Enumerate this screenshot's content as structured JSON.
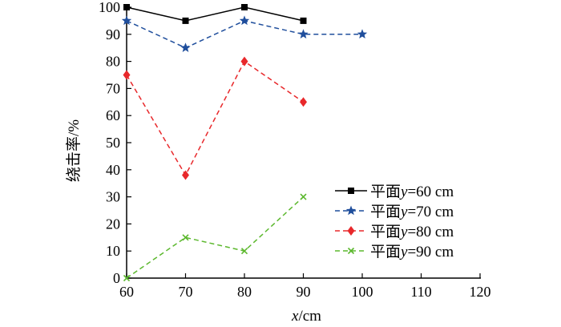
{
  "chart_data": {
    "type": "line",
    "title": "",
    "xlabel_var": "x",
    "xlabel_unit": "/cm",
    "ylabel": "绕击率/%",
    "xlim": [
      60,
      120
    ],
    "ylim": [
      0,
      100
    ],
    "x_ticks": [
      60,
      70,
      80,
      90,
      100,
      110,
      120
    ],
    "y_ticks": [
      0,
      10,
      20,
      30,
      40,
      50,
      60,
      70,
      80,
      90,
      100
    ],
    "grid": false,
    "legend_position": "bottom-right",
    "series": [
      {
        "name": "平面y=60 cm",
        "legend_prefix": "平面",
        "legend_var": "y",
        "legend_suffix": "=60 cm",
        "color": "#000000",
        "line_style": "solid",
        "marker": "square",
        "x": [
          60,
          70,
          80,
          90
        ],
        "values": [
          100,
          95,
          100,
          95
        ]
      },
      {
        "name": "平面y=70 cm",
        "legend_prefix": "平面",
        "legend_var": "y",
        "legend_suffix": "=70 cm",
        "color": "#1f4e9c",
        "line_style": "dashed",
        "marker": "star",
        "x": [
          60,
          70,
          80,
          90,
          100
        ],
        "values": [
          95,
          85,
          95,
          90,
          90
        ]
      },
      {
        "name": "平面y=80 cm",
        "legend_prefix": "平面",
        "legend_var": "y",
        "legend_suffix": "=80 cm",
        "color": "#e8282b",
        "line_style": "dashed",
        "marker": "diamond",
        "x": [
          60,
          70,
          80,
          90
        ],
        "values": [
          75,
          38,
          80,
          65
        ]
      },
      {
        "name": "平面y=90 cm",
        "legend_prefix": "平面",
        "legend_var": "y",
        "legend_suffix": "=90 cm",
        "color": "#5cb82e",
        "line_style": "dashed",
        "marker": "x",
        "x": [
          60,
          70,
          80,
          90
        ],
        "values": [
          0,
          15,
          10,
          30
        ]
      }
    ]
  }
}
